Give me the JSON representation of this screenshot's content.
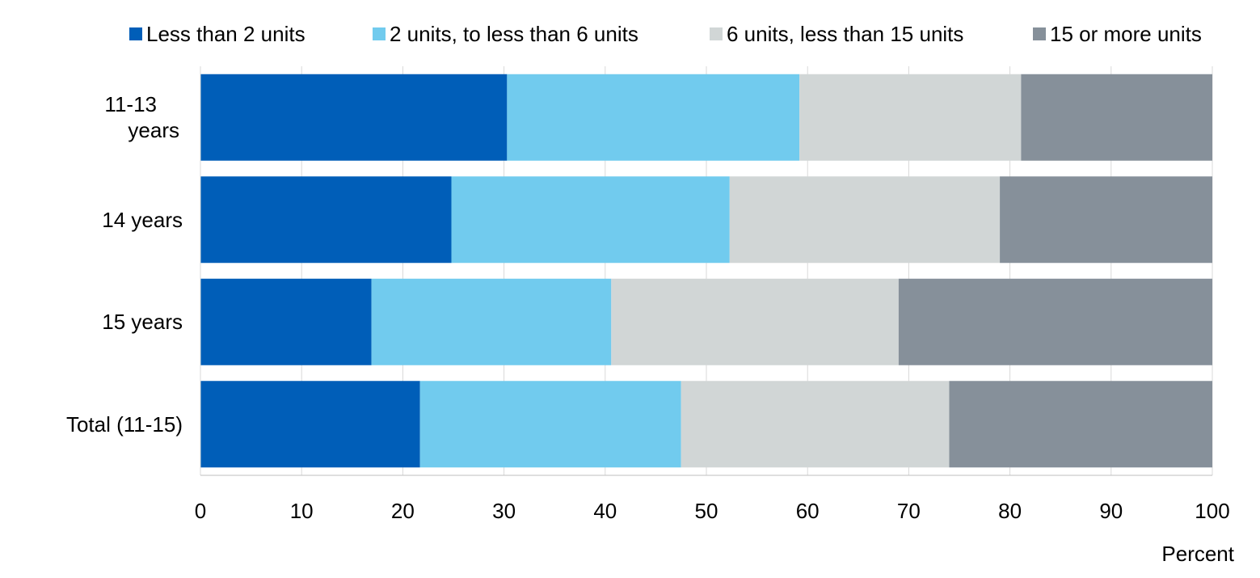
{
  "chart_data": {
    "type": "bar",
    "orientation": "horizontal",
    "stacked": true,
    "categories": [
      "11-13 years",
      "14 years",
      "15 years",
      "Total (11-15)"
    ],
    "series": [
      {
        "name": "Less than 2 units",
        "color": "#005EB8",
        "values": [
          30.3,
          24.8,
          16.9,
          21.7
        ]
      },
      {
        "name": "2 units, to less than 6 units",
        "color": "#71CBEE",
        "values": [
          28.9,
          27.5,
          23.7,
          25.8
        ]
      },
      {
        "name": "6 units, less than 15 units",
        "color": "#D1D6D6",
        "values": [
          21.9,
          26.7,
          28.4,
          26.5
        ]
      },
      {
        "name": "15 or more units",
        "color": "#86909A",
        "values": [
          18.9,
          21.0,
          31.0,
          26.0
        ]
      }
    ],
    "x_ticks": [
      "0",
      "10",
      "20",
      "30",
      "40",
      "50",
      "60",
      "70",
      "80",
      "90",
      "100"
    ],
    "xlim": [
      0,
      100
    ],
    "xlabel": "Percent",
    "ylabel": "",
    "title": "",
    "grid": "vertical",
    "legend_position": "top"
  }
}
